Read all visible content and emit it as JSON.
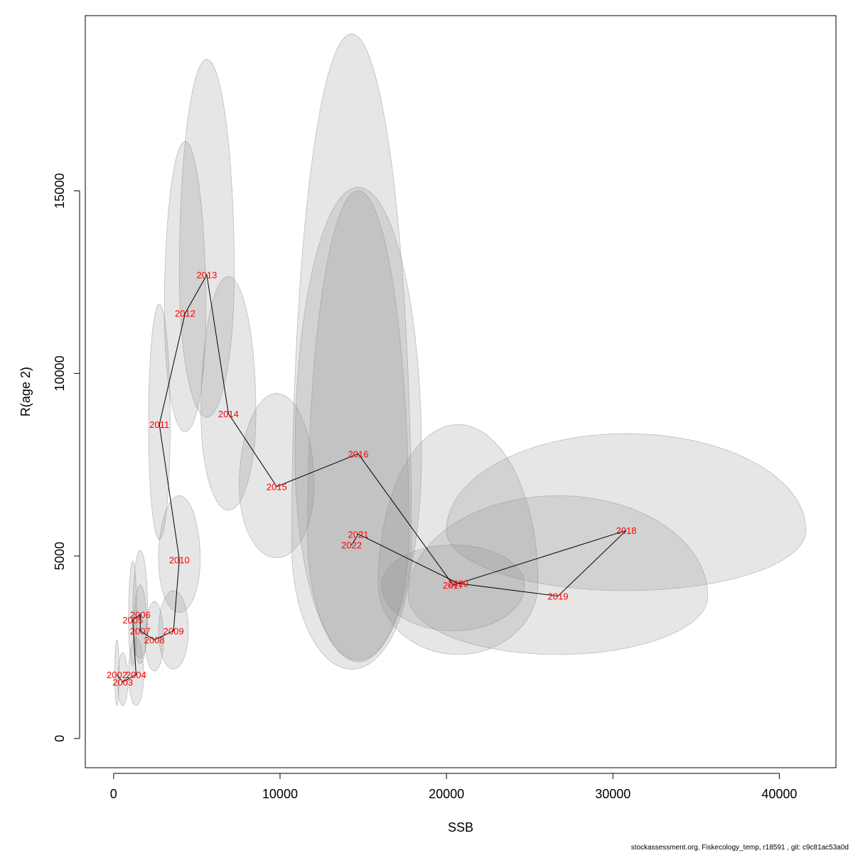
{
  "chart_data": {
    "type": "scatter",
    "xlabel": "SSB",
    "ylabel": "R(age 2)",
    "xlim": [
      -1700,
      43400
    ],
    "ylim": [
      -800,
      19800
    ],
    "xticks": [
      0,
      10000,
      20000,
      30000,
      40000
    ],
    "yticks": [
      0,
      5000,
      10000,
      15000
    ],
    "grid": false,
    "points": [
      {
        "year": "2002",
        "x": 200,
        "y": 1750,
        "sx": 130,
        "sy_lo": 850,
        "sy_hi": 950
      },
      {
        "year": "2003",
        "x": 550,
        "y": 1550,
        "sx": 300,
        "sy_lo": 650,
        "sy_hi": 800
      },
      {
        "year": "2004",
        "x": 1350,
        "y": 1750,
        "sx": 450,
        "sy_lo": 850,
        "sy_hi": 1000
      },
      {
        "year": "2005",
        "x": 1150,
        "y": 3250,
        "sx": 250,
        "sy_lo": 1250,
        "sy_hi": 1600
      },
      {
        "year": "2006",
        "x": 1600,
        "y": 3400,
        "sx": 450,
        "sy_lo": 1350,
        "sy_hi": 1750
      },
      {
        "year": "2007",
        "x": 1600,
        "y": 2950,
        "sx": 400,
        "sy_lo": 750,
        "sy_hi": 1250
      },
      {
        "year": "2008",
        "x": 2450,
        "y": 2700,
        "sx": 550,
        "sy_lo": 850,
        "sy_hi": 1050
      },
      {
        "year": "2009",
        "x": 3600,
        "y": 2950,
        "sx": 900,
        "sy_lo": 1050,
        "sy_hi": 1100
      },
      {
        "year": "2010",
        "x": 3950,
        "y": 4900,
        "sx": 1250,
        "sy_lo": 1450,
        "sy_hi": 1750
      },
      {
        "year": "2011",
        "x": 2750,
        "y": 8600,
        "sx": 650,
        "sy_lo": 3150,
        "sy_hi": 3300
      },
      {
        "year": "2012",
        "x": 4300,
        "y": 11650,
        "sx": 1250,
        "sy_lo": 3250,
        "sy_hi": 4700
      },
      {
        "year": "2013",
        "x": 5600,
        "y": 12700,
        "sx": 1650,
        "sy_lo": 3900,
        "sy_hi": 5900
      },
      {
        "year": "2014",
        "x": 6900,
        "y": 8900,
        "sx": 1650,
        "sy_lo": 2650,
        "sy_hi": 3750
      },
      {
        "year": "2015",
        "x": 9800,
        "y": 6900,
        "sx": 2250,
        "sy_lo": 1950,
        "sy_hi": 2550
      },
      {
        "year": "2016",
        "x": 14700,
        "y": 7800,
        "sx": 3800,
        "sy_lo": 5700,
        "sy_hi": 7300
      },
      {
        "year": "2017",
        "x": 20400,
        "y": 4200,
        "sx": 4300,
        "sy_lo": 1250,
        "sy_hi": 1100
      },
      {
        "year": "2018",
        "x": 30800,
        "y": 5700,
        "sx": 10800,
        "sy_lo": 1650,
        "sy_hi": 2650
      },
      {
        "year": "2019",
        "x": 26700,
        "y": 3900,
        "sx": 9000,
        "sy_lo": 1600,
        "sy_hi": 2750
      },
      {
        "year": "2020",
        "x": 20700,
        "y": 4250,
        "sx": 4800,
        "sy_lo": 1950,
        "sy_hi": 4350
      },
      {
        "year": "2021",
        "x": 14700,
        "y": 5600,
        "sx": 3050,
        "sy_lo": 3450,
        "sy_hi": 9400
      },
      {
        "year": "2022",
        "x": 14300,
        "y": 5300,
        "sx": 3600,
        "sy_lo": 3400,
        "sy_hi": 14000
      }
    ]
  },
  "footer": {
    "text": "stockassessment.org, Fiskecology_temp, r18591 , git: c9c81ac53a0d"
  }
}
